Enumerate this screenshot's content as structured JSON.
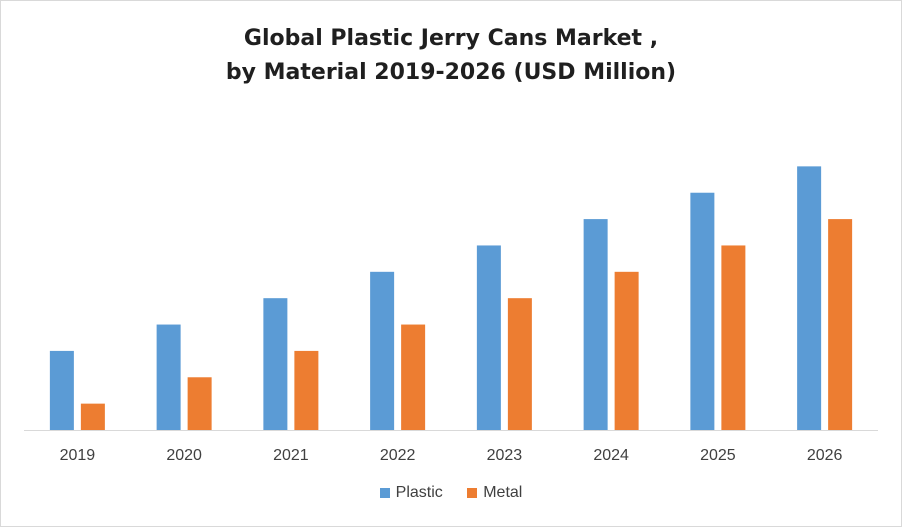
{
  "chart_data": {
    "type": "bar",
    "title_line1": "Global Plastic Jerry Cans Market ,",
    "title_line2": "by Material 2019-2026 (USD Million)",
    "xlabel": "",
    "ylabel": "",
    "categories": [
      "2019",
      "2020",
      "2021",
      "2022",
      "2023",
      "2024",
      "2025",
      "2026"
    ],
    "series": [
      {
        "name": "Plastic",
        "color": "#5b9bd5",
        "values": [
          3,
          4,
          5,
          6,
          7,
          8,
          9,
          10
        ]
      },
      {
        "name": "Metal",
        "color": "#ed7d31",
        "values": [
          1,
          2,
          3,
          4,
          5,
          6,
          7,
          8
        ]
      }
    ],
    "ylim": [
      0,
      11
    ],
    "grid": false,
    "legend_position": "bottom"
  }
}
